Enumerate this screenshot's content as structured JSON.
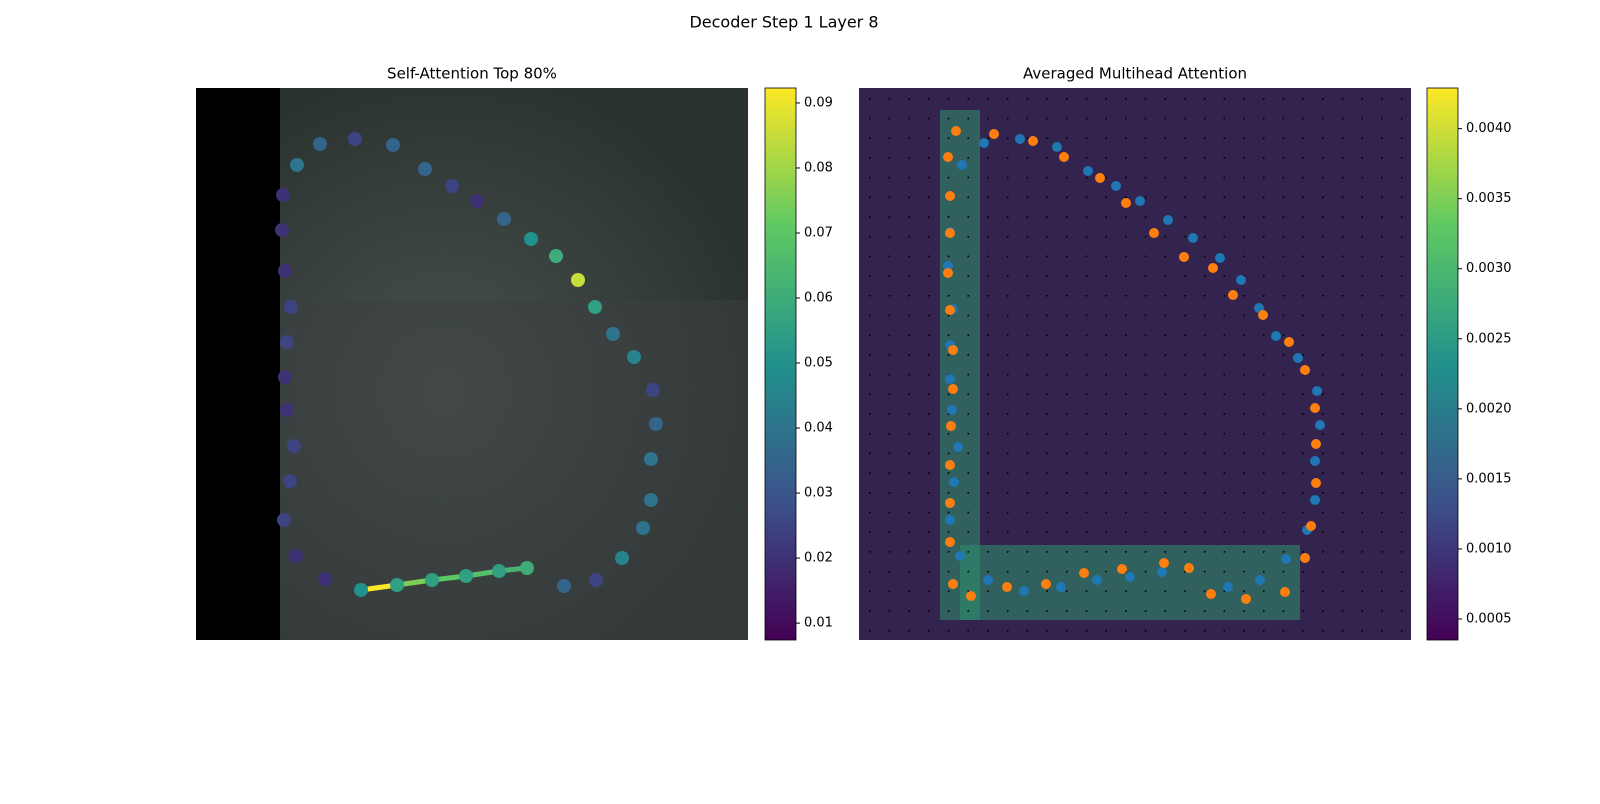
{
  "title": "Decoder Step 1 Layer 8",
  "chart_data": [
    {
      "type": "scatter",
      "title": "Self-Attention Top 80%",
      "colormap": "viridis",
      "xlim": [
        0,
        552
      ],
      "ylim": [
        552,
        0
      ],
      "x": [
        101,
        124,
        159,
        197,
        229,
        256,
        281,
        308,
        335,
        360,
        382,
        399,
        417,
        438,
        457,
        460,
        455,
        455,
        447,
        426,
        400,
        368,
        331,
        303,
        270,
        236,
        201,
        165,
        129,
        100,
        88,
        94,
        98,
        91,
        89,
        91,
        95,
        89,
        86,
        87
      ],
      "y": [
        77,
        56,
        51,
        57,
        81,
        98,
        113,
        131,
        151,
        168,
        192,
        219,
        246,
        269,
        302,
        336,
        371,
        412,
        440,
        470,
        492,
        498,
        480,
        483,
        488,
        492,
        497,
        502,
        491,
        468,
        432,
        393,
        358,
        322,
        289,
        254,
        219,
        183,
        142,
        107
      ],
      "values": [
        0.04,
        0.035,
        0.025,
        0.035,
        0.035,
        0.025,
        0.02,
        0.035,
        0.05,
        0.06,
        0.085,
        0.055,
        0.04,
        0.045,
        0.025,
        0.035,
        0.04,
        0.04,
        0.04,
        0.045,
        0.025,
        0.035,
        0.06,
        0.055,
        0.055,
        0.055,
        0.055,
        0.05,
        0.02,
        0.02,
        0.025,
        0.025,
        0.025,
        0.02,
        0.02,
        0.025,
        0.025,
        0.02,
        0.02,
        0.02
      ],
      "edges": {
        "x": [
          165,
          201,
          236,
          270,
          303
        ],
        "x_end": [
          201,
          236,
          270,
          303,
          331
        ],
        "y": [
          502,
          497,
          492,
          488,
          483
        ],
        "y_end": [
          497,
          492,
          488,
          483,
          480
        ],
        "values": [
          0.092,
          0.075,
          0.07,
          0.068,
          0.063
        ]
      },
      "clim": [
        0.0074,
        0.0923
      ],
      "cticks": [
        0.01,
        0.02,
        0.03,
        0.04,
        0.05,
        0.06,
        0.07,
        0.08,
        0.09
      ]
    },
    {
      "type": "scatter",
      "title": "Averaged Multihead Attention",
      "colormap": "viridis",
      "xlim": [
        0,
        552
      ],
      "ylim": [
        552,
        0
      ],
      "series": [
        {
          "color": "#1f77b4",
          "x": [
            125,
            161,
            198,
            229,
            257,
            281,
            309,
            334,
            361,
            382,
            400,
            417,
            439,
            458,
            461,
            456,
            456,
            448,
            427,
            401,
            369,
            303,
            271,
            238,
            202,
            165,
            129,
            101,
            91,
            95,
            99,
            93,
            91,
            91,
            94,
            89,
            91,
            103
          ],
          "y": [
            55,
            51,
            59,
            83,
            98,
            113,
            132,
            150,
            170,
            192,
            220,
            248,
            270,
            303,
            337,
            373,
            412,
            442,
            471,
            492,
            499,
            484,
            489,
            492,
            499,
            503,
            492,
            468,
            432,
            394,
            359,
            322,
            291,
            257,
            221,
            178,
            144,
            77
          ]
        },
        {
          "color": "#ff7f0e",
          "x": [
            97,
            135,
            174,
            205,
            241,
            267,
            295,
            325,
            354,
            374,
            404,
            430,
            446,
            456,
            457,
            457,
            452,
            446,
            426,
            387,
            352,
            330,
            305,
            263,
            225,
            187,
            148,
            112,
            94,
            91,
            91,
            91,
            92,
            94,
            94,
            91,
            89,
            91,
            91,
            89
          ],
          "y": [
            43,
            46,
            53,
            69,
            90,
            115,
            145,
            169,
            180,
            207,
            227,
            254,
            282,
            320,
            356,
            395,
            438,
            470,
            504,
            511,
            506,
            480,
            475,
            481,
            485,
            496,
            499,
            508,
            496,
            454,
            415,
            377,
            338,
            301,
            262,
            222,
            185,
            145,
            108,
            69
          ]
        }
      ],
      "clim": [
        0.00035,
        0.00429
      ],
      "cticks": [
        {
          "value": 0.0005,
          "label": "0.0005"
        },
        {
          "value": 0.001,
          "label": "0.0010"
        },
        {
          "value": 0.0015,
          "label": "0.0015"
        },
        {
          "value": 0.002,
          "label": "0.0020"
        },
        {
          "value": 0.0025,
          "label": "0.0025"
        },
        {
          "value": 0.003,
          "label": "0.0030"
        },
        {
          "value": 0.0035,
          "label": "0.0035"
        },
        {
          "value": 0.004,
          "label": "0.0040"
        }
      ]
    }
  ]
}
